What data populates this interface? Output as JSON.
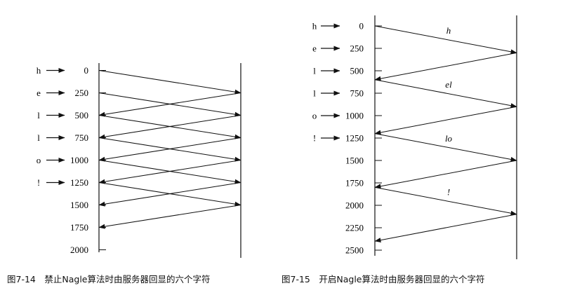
{
  "figures": [
    {
      "id": "fig-7-14",
      "caption": "图7-14　禁止Nagle算法时由服务器回显的六个字符",
      "ticks": [
        "0",
        "250",
        "500",
        "750",
        "1000",
        "1250",
        "1500",
        "1750",
        "2000"
      ],
      "chars": [
        "h",
        "e",
        "l",
        "l",
        "o",
        "!"
      ],
      "send_times": [
        0,
        250,
        500,
        750,
        1000,
        1250
      ],
      "arrive_times": [
        250,
        500,
        750,
        1000,
        1250,
        1500
      ],
      "return_times": [
        500,
        750,
        1000,
        1250,
        1500,
        1750
      ],
      "segment_labels": []
    },
    {
      "id": "fig-7-15",
      "caption": "图7-15　开启Nagle算法时由服务器回显的六个字符",
      "ticks": [
        "0",
        "250",
        "500",
        "750",
        "1000",
        "1250",
        "1500",
        "1750",
        "2000",
        "2250",
        "2500"
      ],
      "chars": [
        "h",
        "e",
        "l",
        "l",
        "o",
        "!"
      ],
      "send_times": [
        0,
        600,
        1200,
        1800
      ],
      "arrive_times": [
        300,
        900,
        1500,
        2100
      ],
      "return_times": [
        600,
        1200,
        1800,
        2400
      ],
      "segment_labels": [
        "h",
        "el",
        "lo",
        "!"
      ]
    }
  ]
}
